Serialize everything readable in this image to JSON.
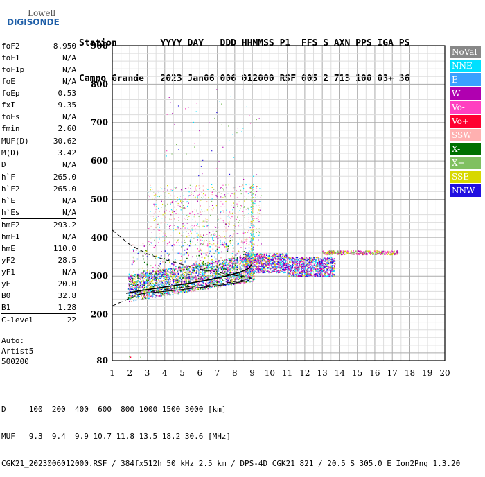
{
  "logo": {
    "line1": "Lowell",
    "line2": "DIGISONDE"
  },
  "header": {
    "row1": "Station        YYYY DAY   DDD HHMMSS P1  FFS S AXN PPS IGA PS",
    "row2": "Campo Grande   2023 Jan06 006 012000 RSF 005 2 713 100 03+ 36"
  },
  "params": [
    {
      "k": "foF2",
      "v": "8.950"
    },
    {
      "k": "foF1",
      "v": "N/A"
    },
    {
      "k": "foF1p",
      "v": "N/A"
    },
    {
      "k": "foE",
      "v": "N/A"
    },
    {
      "k": "foEp",
      "v": "0.53"
    },
    {
      "k": "fxI",
      "v": "9.35"
    },
    {
      "k": "foEs",
      "v": "N/A"
    },
    {
      "k": "fmin",
      "v": "2.60"
    },
    {
      "sep": true
    },
    {
      "k": "MUF(D)",
      "v": "30.62"
    },
    {
      "k": "M(D)",
      "v": "3.42"
    },
    {
      "k": "D",
      "v": "N/A"
    },
    {
      "sep": true
    },
    {
      "k": "h`F",
      "v": "265.0"
    },
    {
      "k": "h`F2",
      "v": "265.0"
    },
    {
      "k": "h`E",
      "v": "N/A"
    },
    {
      "k": "h`Es",
      "v": "N/A"
    },
    {
      "sep": true
    },
    {
      "k": "hmF2",
      "v": "293.2"
    },
    {
      "k": "hmF1",
      "v": "N/A"
    },
    {
      "k": "hmE",
      "v": "110.0"
    },
    {
      "k": "yF2",
      "v": "28.5"
    },
    {
      "k": "yF1",
      "v": "N/A"
    },
    {
      "k": "yE",
      "v": "20.0"
    },
    {
      "k": "B0",
      "v": "32.8"
    },
    {
      "k": "B1",
      "v": "1.28"
    },
    {
      "sep": true
    },
    {
      "k": "C-level",
      "v": "22"
    }
  ],
  "auto": {
    "l1": "Auto:",
    "l2": "Artist5",
    "l3": "500200"
  },
  "legend": [
    {
      "label": "NoVal",
      "color": "#888888"
    },
    {
      "label": "NNE",
      "color": "#00e0ff"
    },
    {
      "label": "E",
      "color": "#3aa0ff"
    },
    {
      "label": "W",
      "color": "#b000b0"
    },
    {
      "label": "Vo-",
      "color": "#ff40c0"
    },
    {
      "label": "Vo+",
      "color": "#ff0030"
    },
    {
      "label": "SSW",
      "color": "#ffb0b0"
    },
    {
      "label": "X-",
      "color": "#007000"
    },
    {
      "label": "X+",
      "color": "#80c060"
    },
    {
      "label": "SSE",
      "color": "#d8d800"
    },
    {
      "label": "NNW",
      "color": "#2010e0"
    }
  ],
  "bottom": {
    "l1": "D     100  200  400  600  800 1000 1500 3000 [km]",
    "l2": "MUF   9.3  9.4  9.9 10.7 11.8 13.5 18.2 30.6 [MHz]",
    "l3": "CGK21_2023006012000.RSF / 384fx512h 50 kHz 2.5 km / DPS-4D CGK21 821 / 20.5 S 305.0 E Ion2Png 1.3.20"
  },
  "chart_data": {
    "type": "scatter",
    "title": "",
    "xlabel": "",
    "ylabel": "",
    "xlim": [
      1,
      20
    ],
    "ylim": [
      80,
      900
    ],
    "xticks": [
      1,
      2,
      3,
      4,
      5,
      6,
      7,
      8,
      9,
      10,
      11,
      12,
      13,
      14,
      15,
      16,
      17,
      18,
      19,
      20
    ],
    "yticks": [
      80,
      200,
      300,
      400,
      500,
      600,
      700,
      800,
      900
    ],
    "grid": true,
    "ionogram_trace": {
      "x": [
        1.8,
        2.6,
        3.5,
        4.5,
        5.5,
        6.5,
        7.5,
        8.3,
        8.8,
        8.95
      ],
      "y": [
        255,
        262,
        268,
        275,
        282,
        290,
        300,
        310,
        320,
        330
      ]
    },
    "profile_lower": {
      "x": [
        1.0,
        1.5,
        2.5,
        3.5,
        4.5,
        5.5,
        6.5,
        7.5,
        8.5,
        8.95
      ],
      "y": [
        222,
        232,
        252,
        262,
        268,
        273,
        276,
        282,
        289,
        295
      ]
    },
    "profile_upper_dashed": {
      "x": [
        1.0,
        2.0,
        3.0,
        4.0,
        5.0,
        6.0,
        7.0,
        8.0,
        8.9
      ],
      "y": [
        420,
        382,
        358,
        343,
        330,
        318,
        310,
        302,
        296
      ]
    }
  }
}
